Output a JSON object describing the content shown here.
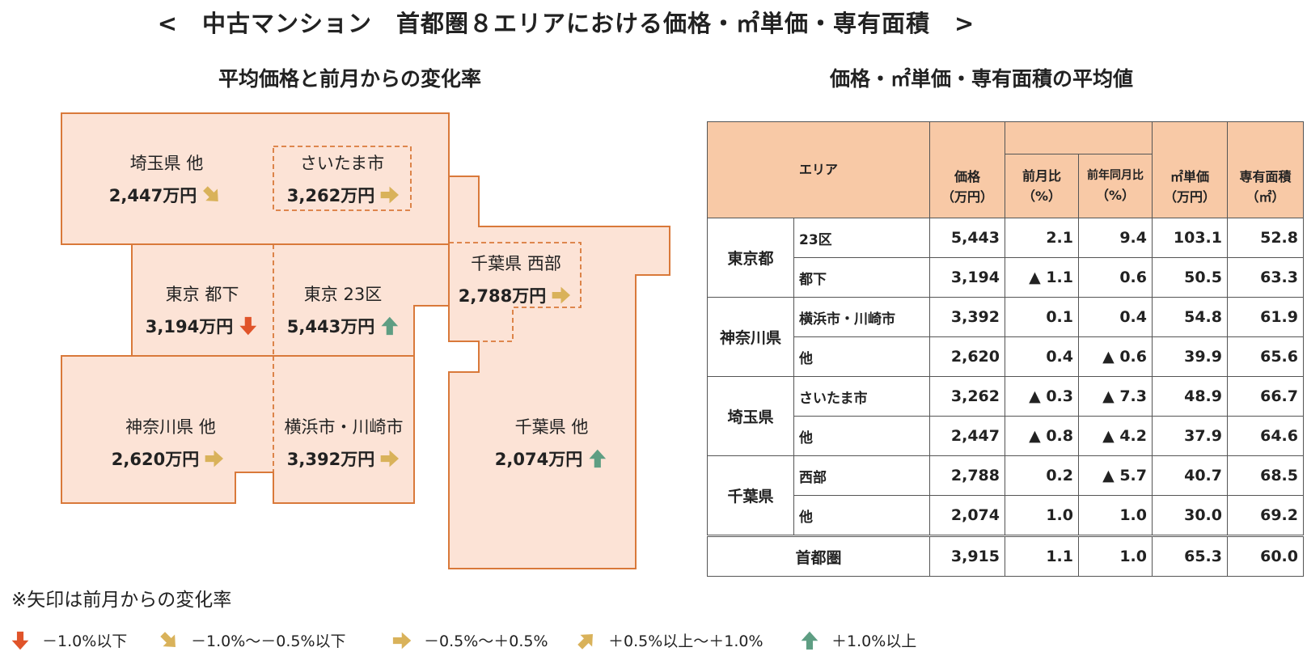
{
  "title": "<　中古マンション　首都圏８エリアにおける価格・㎡単価・専有面積　>",
  "map_title": "平均価格と前月からの変化率",
  "table_title": "価格・㎡単価・専有面積の平均値",
  "regions": {
    "saitama_other": {
      "name": "埼玉県 他",
      "price": "2,447万円",
      "arrow": "down-right"
    },
    "saitama_city": {
      "name": "さいたま市",
      "price": "3,262万円",
      "arrow": "right"
    },
    "tokyo_other": {
      "name": "東京 都下",
      "price": "3,194万円",
      "arrow": "down"
    },
    "tokyo_23": {
      "name": "東京 23区",
      "price": "5,443万円",
      "arrow": "up"
    },
    "chiba_west": {
      "name": "千葉県 西部",
      "price": "2,788万円",
      "arrow": "right"
    },
    "kanagawa_other": {
      "name": "神奈川県 他",
      "price": "2,620万円",
      "arrow": "right"
    },
    "yokohama": {
      "name": "横浜市・川崎市",
      "price": "3,392万円",
      "arrow": "right"
    },
    "chiba_other": {
      "name": "千葉県 他",
      "price": "2,074万円",
      "arrow": "up"
    }
  },
  "table": {
    "headers": {
      "area": "エリア",
      "price": "価格",
      "price_unit": "（万円）",
      "mom": "前月比",
      "mom_unit": "（%）",
      "yoy": "前年同月比",
      "yoy_unit": "（%）",
      "unit_price": "㎡単価",
      "unit_price_unit": "（万円）",
      "area_size": "専有面積",
      "area_size_unit": "（㎡）"
    },
    "groups": [
      {
        "name": "東京都",
        "rows": [
          {
            "sub": "23区",
            "price": "5,443",
            "mom": "2.1",
            "yoy": "9.4",
            "unit": "103.1",
            "size": "52.8"
          },
          {
            "sub": "都下",
            "price": "3,194",
            "mom": "▲ 1.1",
            "yoy": "0.6",
            "unit": "50.5",
            "size": "63.3"
          }
        ]
      },
      {
        "name": "神奈川県",
        "rows": [
          {
            "sub": "横浜市・川崎市",
            "price": "3,392",
            "mom": "0.1",
            "yoy": "0.4",
            "unit": "54.8",
            "size": "61.9"
          },
          {
            "sub": "他",
            "price": "2,620",
            "mom": "0.4",
            "yoy": "▲ 0.6",
            "unit": "39.9",
            "size": "65.6"
          }
        ]
      },
      {
        "name": "埼玉県",
        "rows": [
          {
            "sub": "さいたま市",
            "price": "3,262",
            "mom": "▲ 0.3",
            "yoy": "▲ 7.3",
            "unit": "48.9",
            "size": "66.7"
          },
          {
            "sub": "他",
            "price": "2,447",
            "mom": "▲ 0.8",
            "yoy": "▲ 4.2",
            "unit": "37.9",
            "size": "64.6"
          }
        ]
      },
      {
        "name": "千葉県",
        "rows": [
          {
            "sub": "西部",
            "price": "2,788",
            "mom": "0.2",
            "yoy": "▲ 5.7",
            "unit": "40.7",
            "size": "68.5"
          },
          {
            "sub": "他",
            "price": "2,074",
            "mom": "1.0",
            "yoy": "1.0",
            "unit": "30.0",
            "size": "69.2"
          }
        ]
      }
    ],
    "total": {
      "name": "首都圏",
      "price": "3,915",
      "mom": "1.1",
      "yoy": "1.0",
      "unit": "65.3",
      "size": "60.0"
    }
  },
  "note": "※矢印は前月からの変化率",
  "legend": [
    {
      "arrow": "down",
      "label": "－1.0%以下"
    },
    {
      "arrow": "down-right",
      "label": "－1.0%～－0.5%以下"
    },
    {
      "arrow": "right",
      "label": "－0.5%～＋0.5%"
    },
    {
      "arrow": "up-right",
      "label": "＋0.5%以上～＋1.0%"
    },
    {
      "arrow": "up",
      "label": "＋1.0%以上"
    }
  ],
  "colors": {
    "region_fill": "#fce3d6",
    "region_border": "#d9793a",
    "header_fill": "#f8c9a6",
    "arrow_down": "#e0542a",
    "arrow_down_right": "#d9b25a",
    "arrow_right": "#d9b25a",
    "arrow_up_right": "#d9b25a",
    "arrow_up": "#5e9e83"
  }
}
